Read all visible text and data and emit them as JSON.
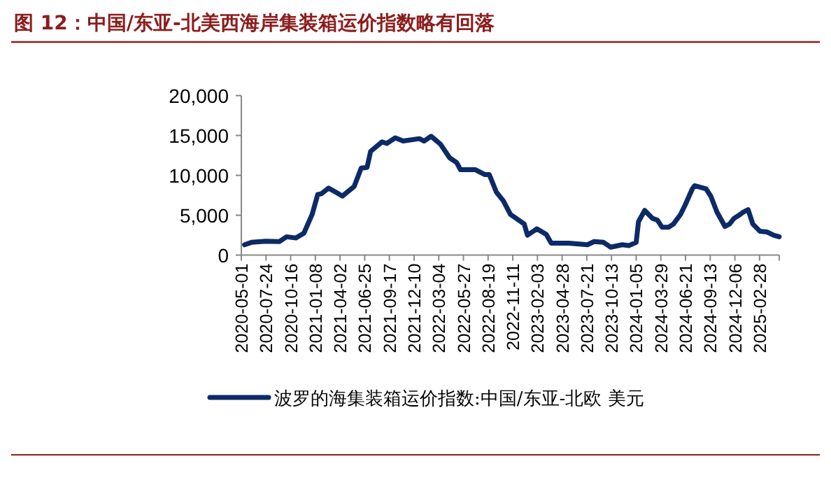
{
  "chart_data": {
    "type": "line",
    "title": "图 12：中国/东亚-北美西海岸集装箱运价指数略有回落",
    "xlim": [
      "2020-05-01",
      "2025-05-06"
    ],
    "xticks": [
      "2020-05-01",
      "2020-07-24",
      "2020-10-16",
      "2021-01-08",
      "2021-04-02",
      "2021-06-25",
      "2021-09-17",
      "2021-12-10",
      "2022-03-04",
      "2022-05-27",
      "2022-08-19",
      "2022-11-11",
      "2023-02-03",
      "2023-04-28",
      "2023-07-21",
      "2023-10-13",
      "2024-01-05",
      "2024-03-29",
      "2024-06-21",
      "2024-09-13",
      "2024-12-06",
      "2025-02-28"
    ],
    "ylim": [
      0,
      20000
    ],
    "yticks": [
      0,
      {
        "value": 5000,
        "label": "5,000"
      },
      {
        "value": 10000,
        "label": "10,000"
      },
      {
        "value": 15000,
        "label": "15,000"
      },
      {
        "value": 20000,
        "label": "20,000"
      }
    ],
    "legend": "bottom",
    "grid": false,
    "marker": "none",
    "line_style": "solid",
    "series": [
      {
        "name": "波罗的海集装箱运价指数:中国/东亚-北欧 美元",
        "color": "#0c2a66",
        "x": [
          "2020-05-12",
          "2020-06-05",
          "2020-07-23",
          "2020-09-08",
          "2020-10-02",
          "2020-11-03",
          "2020-11-30",
          "2020-12-28",
          "2021-01-16",
          "2021-01-29",
          "2021-02-22",
          "2021-03-18",
          "2021-04-10",
          "2021-05-20",
          "2021-06-13",
          "2021-07-03",
          "2021-07-15",
          "2021-08-23",
          "2021-09-08",
          "2021-10-07",
          "2021-11-03",
          "2021-12-28",
          "2022-01-13",
          "2022-02-06",
          "2022-03-10",
          "2022-04-10",
          "2022-05-04",
          "2022-05-17",
          "2022-07-07",
          "2022-08-07",
          "2022-08-23",
          "2022-09-16",
          "2022-10-10",
          "2022-11-03",
          "2022-11-27",
          "2022-12-20",
          "2022-12-31",
          "2023-02-01",
          "2023-03-05",
          "2023-03-22",
          "2023-05-20",
          "2023-07-23",
          "2023-08-15",
          "2023-09-16",
          "2023-10-10",
          "2023-11-19",
          "2023-12-12",
          "2024-01-05",
          "2024-01-13",
          "2024-02-03",
          "2024-03-01",
          "2024-03-17",
          "2024-04-02",
          "2024-04-25",
          "2024-05-11",
          "2024-06-04",
          "2024-06-20",
          "2024-07-14",
          "2024-07-22",
          "2024-08-30",
          "2024-09-15",
          "2024-10-06",
          "2024-11-02",
          "2024-11-18",
          "2024-12-03",
          "2024-12-24",
          "2025-01-04",
          "2025-01-20",
          "2025-02-05",
          "2025-03-01",
          "2025-03-25",
          "2025-04-17",
          "2025-05-06"
        ],
        "values": [
          1300,
          1600,
          1750,
          1700,
          2300,
          2150,
          2750,
          5100,
          7600,
          7700,
          8400,
          7900,
          7400,
          8600,
          10900,
          11000,
          13000,
          14200,
          14000,
          14700,
          14300,
          14600,
          14300,
          14900,
          13900,
          12200,
          11600,
          10700,
          10700,
          10100,
          10100,
          7900,
          6800,
          5100,
          4500,
          3900,
          2500,
          3300,
          2600,
          1500,
          1500,
          1300,
          1700,
          1600,
          1000,
          1300,
          1200,
          1600,
          4200,
          5600,
          4600,
          4400,
          3500,
          3500,
          3900,
          5100,
          6300,
          8300,
          8700,
          8300,
          7400,
          5400,
          3600,
          3900,
          4600,
          5100,
          5400,
          5700,
          3900,
          3000,
          2900,
          2500,
          2300
        ]
      }
    ]
  }
}
